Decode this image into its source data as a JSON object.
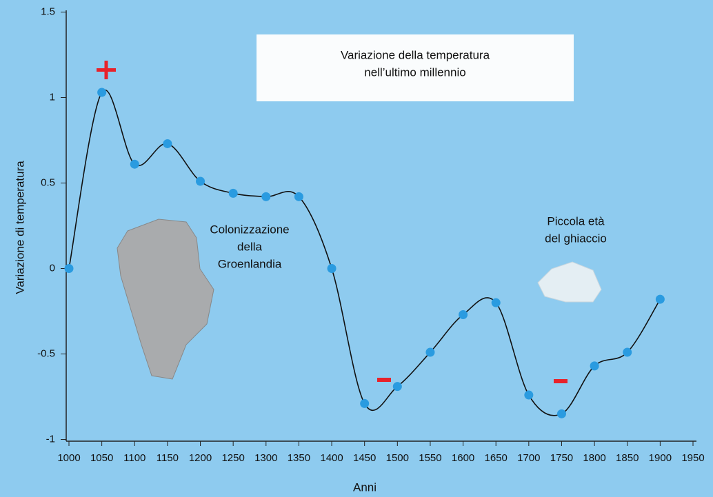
{
  "chart_data": {
    "type": "line",
    "title": [
      "Variazione della temperatura",
      "nell’ultimo millennio"
    ],
    "xlabel": "Anni",
    "ylabel": "Variazione di temperatura",
    "x": [
      1000,
      1050,
      1100,
      1150,
      1200,
      1250,
      1300,
      1350,
      1400,
      1450,
      1500,
      1550,
      1600,
      1650,
      1700,
      1750,
      1800,
      1850,
      1900
    ],
    "series": [
      {
        "color": "#2a9be0",
        "values": [
          0,
          1.03,
          0.61,
          0.73,
          0.51,
          0.44,
          0.42,
          0.42,
          0,
          -0.79,
          -0.69,
          -0.49,
          -0.27,
          -0.2,
          -0.74,
          -0.85,
          -0.57,
          -0.49,
          -0.18
        ]
      }
    ],
    "xlim": [
      1000,
      1950
    ],
    "xticks": [
      1000,
      1050,
      1100,
      1150,
      1200,
      1250,
      1300,
      1350,
      1400,
      1450,
      1500,
      1550,
      1600,
      1650,
      1700,
      1750,
      1800,
      1850,
      1900,
      1950
    ],
    "ylim": [
      -1.01,
      1.51
    ],
    "yticks": [
      -1,
      -0.5,
      0,
      0.5,
      1,
      1.5
    ],
    "annotations": [
      [
        "Colonizzazione",
        "della",
        "Groenlandia"
      ],
      [
        "Piccola età",
        "del ghiaccio"
      ]
    ]
  }
}
